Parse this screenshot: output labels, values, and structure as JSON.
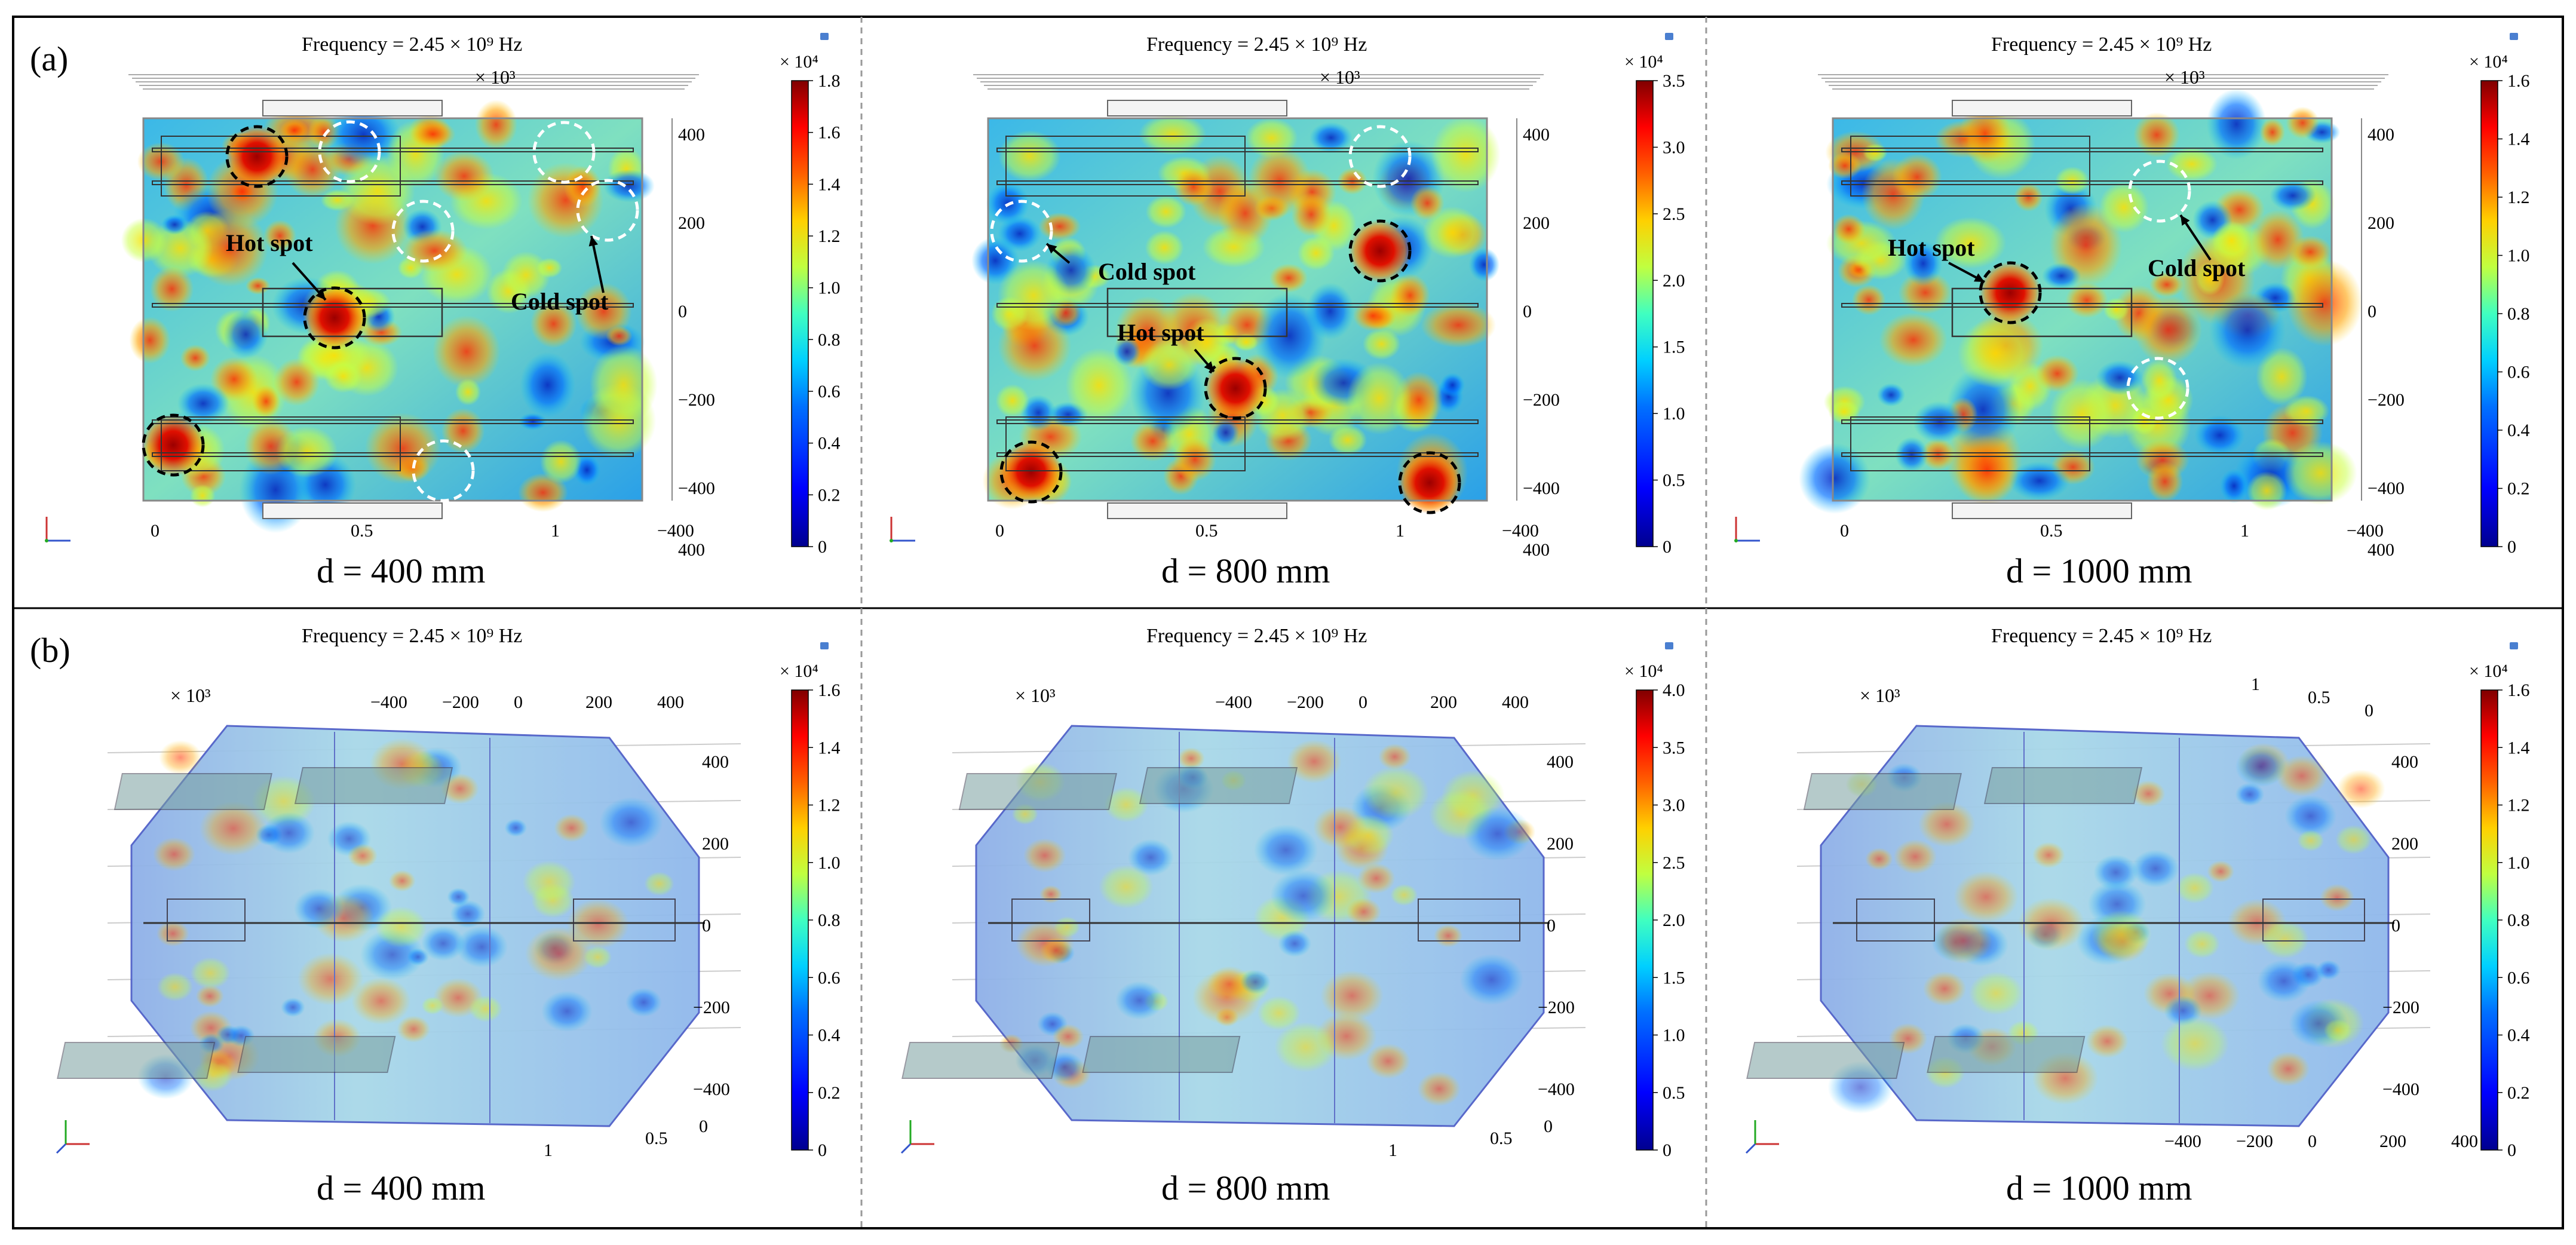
{
  "figure": {
    "rows": [
      {
        "label": "(a)",
        "view": "side",
        "panels": [
          {
            "frequency": "Frequency = 2.45 × 10⁹ Hz",
            "scale_top": "× 10³",
            "axis_x_ticks": [
              "0",
              "0.5",
              "1"
            ],
            "axis_y_ticks": [
              "400",
              "200",
              "0",
              "−200",
              "−400"
            ],
            "axis_extra_ticks": [
              "−400",
              "400"
            ],
            "colorbar": {
              "unit": "× 10⁴",
              "max": 1.8,
              "ticks": [
                "1.8",
                "1.6",
                "1.4",
                "1.2",
                "1.0",
                "0.8",
                "0.6",
                "0.4",
                "0.2",
                "0"
              ]
            },
            "annotations": [
              {
                "text": "Hot spot",
                "color": "black"
              },
              {
                "text": "Cold spot",
                "color": "black"
              }
            ],
            "caption": "d = 400 mm"
          },
          {
            "frequency": "Frequency = 2.45 × 10⁹ Hz",
            "scale_top": "× 10³",
            "axis_x_ticks": [
              "0",
              "0.5",
              "1"
            ],
            "axis_y_ticks": [
              "400",
              "200",
              "0",
              "−200",
              "−400"
            ],
            "axis_extra_ticks": [
              "−400",
              "400"
            ],
            "colorbar": {
              "unit": "× 10⁴",
              "max": 3.5,
              "ticks": [
                "3.5",
                "3.0",
                "2.5",
                "2.0",
                "1.5",
                "1.0",
                "0.5",
                "0"
              ]
            },
            "annotations": [
              {
                "text": "Cold spot",
                "color": "black"
              },
              {
                "text": "Hot spot",
                "color": "black"
              }
            ],
            "caption": "d = 800 mm"
          },
          {
            "frequency": "Frequency = 2.45 × 10⁹ Hz",
            "scale_top": "× 10³",
            "axis_x_ticks": [
              "0",
              "0.5",
              "1"
            ],
            "axis_y_ticks": [
              "400",
              "200",
              "0",
              "−200",
              "−400"
            ],
            "axis_extra_ticks": [
              "−400",
              "400"
            ],
            "colorbar": {
              "unit": "× 10⁴",
              "max": 1.6,
              "ticks": [
                "1.6",
                "1.4",
                "1.2",
                "1.0",
                "0.8",
                "0.6",
                "0.4",
                "0.2",
                "0"
              ]
            },
            "annotations": [
              {
                "text": "Hot spot",
                "color": "black"
              },
              {
                "text": "Cold spot",
                "color": "black"
              }
            ],
            "caption": "d = 1000 mm"
          }
        ]
      },
      {
        "label": "(b)",
        "view": "isometric",
        "panels": [
          {
            "frequency": "Frequency = 2.45 × 10⁹ Hz",
            "scale_top": "× 10³",
            "axis_top_ticks": [
              "−400",
              "−200",
              "0",
              "200",
              "400"
            ],
            "axis_y_ticks": [
              "400",
              "200",
              "0",
              "−200",
              "−400"
            ],
            "axis_bottom_ticks": [
              "0",
              "0.5",
              "1"
            ],
            "colorbar": {
              "unit": "× 10⁴",
              "max": 1.6,
              "ticks": [
                "1.6",
                "1.4",
                "1.2",
                "1.0",
                "0.8",
                "0.6",
                "0.4",
                "0.2",
                "0"
              ]
            },
            "caption": "d = 400 mm"
          },
          {
            "frequency": "Frequency = 2.45 × 10⁹ Hz",
            "scale_top": "× 10³",
            "axis_top_ticks": [
              "−400",
              "−200",
              "0",
              "200",
              "400"
            ],
            "axis_y_ticks": [
              "400",
              "200",
              "0",
              "−200",
              "−400"
            ],
            "axis_bottom_ticks": [
              "0",
              "0.5",
              "1"
            ],
            "colorbar": {
              "unit": "× 10⁴",
              "max": 4.0,
              "ticks": [
                "4.0",
                "3.5",
                "3.0",
                "2.5",
                "2.0",
                "1.5",
                "1.0",
                "0.5",
                "0"
              ]
            },
            "caption": "d = 800 mm"
          },
          {
            "frequency": "Frequency = 2.45 × 10⁹ Hz",
            "scale_top": "× 10³",
            "axis_top_ticks": [
              "1",
              "0.5",
              "0"
            ],
            "axis_y_ticks": [
              "400",
              "200",
              "0",
              "−200",
              "−400"
            ],
            "axis_bottom_ticks": [
              "−400",
              "−200",
              "0",
              "200",
              "400"
            ],
            "colorbar": {
              "unit": "× 10⁴",
              "max": 1.6,
              "ticks": [
                "1.6",
                "1.4",
                "1.2",
                "1.0",
                "0.8",
                "0.6",
                "0.4",
                "0.2",
                "0"
              ]
            },
            "caption": "d = 1000 mm"
          }
        ]
      }
    ]
  },
  "colors": {
    "jet": [
      "#00008f",
      "#0000ff",
      "#0080ff",
      "#00ffff",
      "#80ff80",
      "#ffff00",
      "#ff8000",
      "#ff0000",
      "#800000"
    ],
    "field_base": "#5fc8e0",
    "frame": "#000000",
    "divider": "#999999"
  }
}
